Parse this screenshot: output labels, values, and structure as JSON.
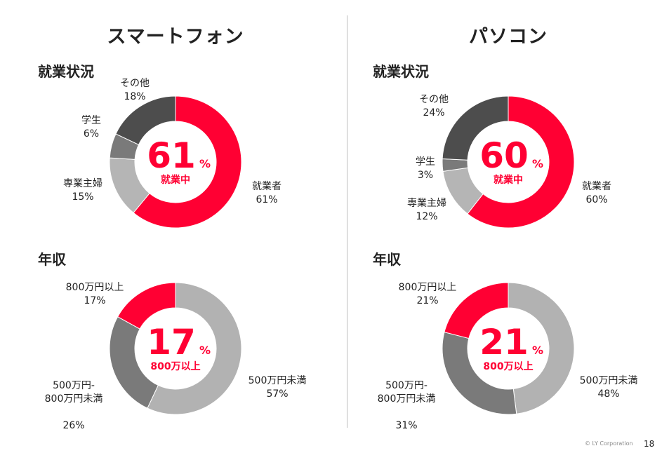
{
  "columns": [
    {
      "title": "スマートフォン"
    },
    {
      "title": "パソコン"
    }
  ],
  "sections": {
    "employment": "就業状況",
    "income": "年収"
  },
  "colors": {
    "red": "#FF0033",
    "dark_gray": "#4D4D4D",
    "mid_gray": "#7A7A7A",
    "light_gray": "#B5B5B5",
    "lighter_gray": "#B2B2B2"
  },
  "chart_data": [
    {
      "type": "pie",
      "slices": [
        {
          "label": "就業者",
          "value": 61,
          "display": "61%"
        },
        {
          "label": "専業主婦",
          "value": 15,
          "display": "15%"
        },
        {
          "label": "学生",
          "value": 6,
          "display": "6%"
        },
        {
          "label": "その他",
          "value": 18,
          "display": "18%"
        }
      ],
      "center_value": "61",
      "center_unit": "%",
      "center_text": "就業中"
    },
    {
      "type": "pie",
      "slices": [
        {
          "label": "就業者",
          "value": 60,
          "display": "60%"
        },
        {
          "label": "専業主婦",
          "value": 12,
          "display": "12%"
        },
        {
          "label": "学生",
          "value": 3,
          "display": "3%"
        },
        {
          "label": "その他",
          "value": 24,
          "display": "24%"
        }
      ],
      "center_value": "60",
      "center_unit": "%",
      "center_text": "就業中"
    },
    {
      "type": "pie",
      "slices": [
        {
          "label": "500万円未満",
          "value": 57,
          "display": "57%"
        },
        {
          "label": "500万円-\n800万円未満",
          "value": 26,
          "display": "26%"
        },
        {
          "label": "800万円以上",
          "value": 17,
          "display": "17%"
        }
      ],
      "center_value": "17",
      "center_unit": "%",
      "center_text": "800万以上"
    },
    {
      "type": "pie",
      "slices": [
        {
          "label": "500万円未満",
          "value": 48,
          "display": "48%"
        },
        {
          "label": "500万円-\n800万円未満",
          "value": 31,
          "display": "31%"
        },
        {
          "label": "800万円以上",
          "value": 21,
          "display": "21%"
        }
      ],
      "center_value": "21",
      "center_unit": "%",
      "center_text": "800万以上"
    }
  ],
  "footer": {
    "copyright": "© LY Corporation",
    "page": "18"
  }
}
